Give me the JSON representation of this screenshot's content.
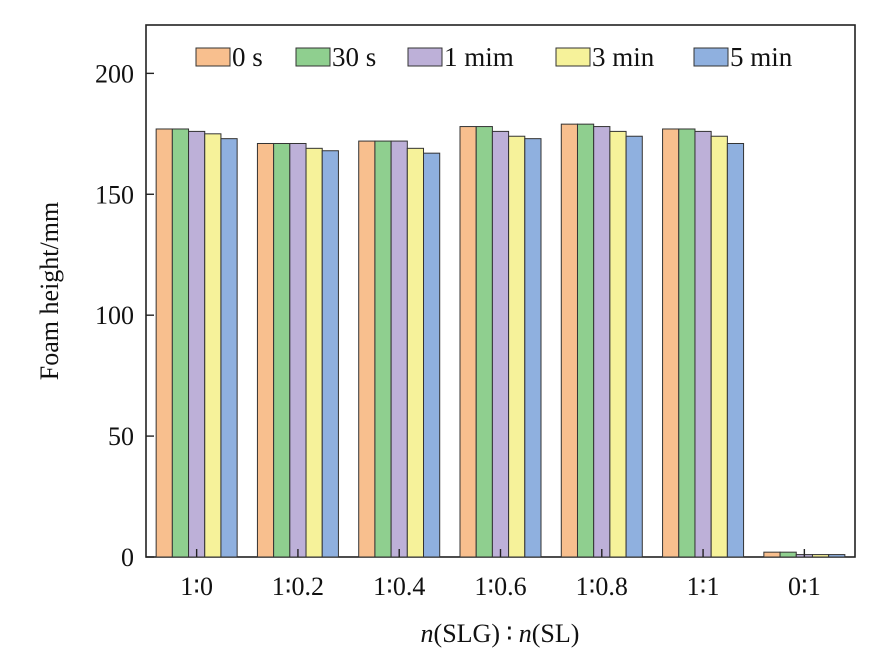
{
  "chart_data": {
    "type": "bar",
    "categories": [
      "1∶0",
      "1∶0.2",
      "1∶0.4",
      "1∶0.6",
      "1∶0.8",
      "1∶1",
      "0∶1"
    ],
    "series": [
      {
        "name": "0 s",
        "color": "#f8bf8e",
        "values": [
          177,
          171,
          172,
          178,
          179,
          177,
          2
        ]
      },
      {
        "name": "30 s",
        "color": "#8fcf8f",
        "values": [
          177,
          171,
          172,
          178,
          179,
          177,
          2
        ]
      },
      {
        "name": "1 mim",
        "color": "#bdb0d8",
        "values": [
          176,
          171,
          172,
          176,
          178,
          176,
          1
        ]
      },
      {
        "name": "3 min",
        "color": "#f6f29a",
        "values": [
          175,
          169,
          169,
          174,
          176,
          174,
          1
        ]
      },
      {
        "name": "5 min",
        "color": "#8fb0df",
        "values": [
          173,
          168,
          167,
          173,
          174,
          171,
          1
        ]
      }
    ],
    "ylabel": "Foam height/mm",
    "xlabel_parts": [
      "n",
      "(SLG)",
      "∶",
      "n",
      "(SL)"
    ],
    "yticks": [
      0,
      50,
      100,
      150,
      200
    ],
    "ylim": [
      0,
      220
    ],
    "legend_position": "top",
    "grid": false
  }
}
